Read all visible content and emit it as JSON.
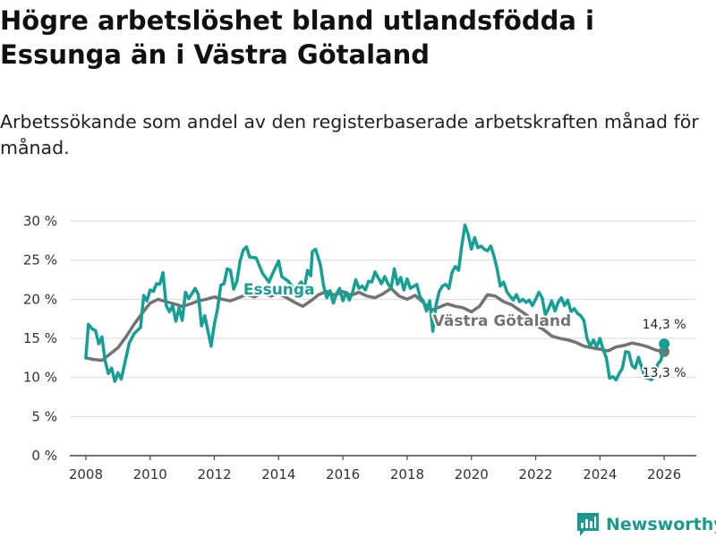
{
  "header": {
    "title": "Högre arbetslöshet bland utlandsfödda i Essunga än i Västra Götaland",
    "subtitle": "Arbetssökande som andel av den registerbaserade arbetskraften månad för månad."
  },
  "brand": {
    "name": "Newsworthy"
  },
  "colors": {
    "essunga": "#15a096",
    "vg": "#737373",
    "grid": "#d9d9d9",
    "axis": "#444444"
  },
  "chart_data": {
    "type": "line",
    "title": "Högre arbetslöshet bland utlandsfödda i Essunga än i Västra Götaland",
    "xlabel": "",
    "ylabel": "",
    "xlim": [
      2007.5,
      2027
    ],
    "ylim": [
      0,
      30
    ],
    "x_ticks": [
      2008,
      2010,
      2012,
      2014,
      2016,
      2018,
      2020,
      2022,
      2024,
      2026
    ],
    "x_tick_labels": [
      "2008",
      "2010",
      "2012",
      "2014",
      "2016",
      "2018",
      "2020",
      "2022",
      "2024",
      "2026"
    ],
    "y_ticks": [
      0,
      5,
      10,
      15,
      20,
      25,
      30
    ],
    "y_tick_labels": [
      "0 %",
      "5 %",
      "10 %",
      "15 %",
      "20 %",
      "25 %",
      "30 %"
    ],
    "grid": true,
    "series": [
      {
        "name": "Västra Götaland",
        "label": "Västra Götaland",
        "color": "#737373",
        "end_label": "13,3 %",
        "end_value": 13.3,
        "points": [
          [
            2008.0,
            12.5
          ],
          [
            2008.25,
            12.3
          ],
          [
            2008.5,
            12.2
          ],
          [
            2008.75,
            13.0
          ],
          [
            2009.0,
            13.8
          ],
          [
            2009.25,
            15.2
          ],
          [
            2009.5,
            16.8
          ],
          [
            2009.75,
            18.2
          ],
          [
            2010.0,
            19.5
          ],
          [
            2010.25,
            20.0
          ],
          [
            2010.5,
            19.7
          ],
          [
            2010.75,
            19.4
          ],
          [
            2011.0,
            19.1
          ],
          [
            2011.25,
            19.4
          ],
          [
            2011.5,
            19.8
          ],
          [
            2011.75,
            20.0
          ],
          [
            2012.0,
            20.3
          ],
          [
            2012.25,
            20.0
          ],
          [
            2012.5,
            19.8
          ],
          [
            2012.75,
            20.2
          ],
          [
            2013.0,
            20.6
          ],
          [
            2013.25,
            20.3
          ],
          [
            2013.5,
            20.8
          ],
          [
            2013.75,
            20.4
          ],
          [
            2014.0,
            20.7
          ],
          [
            2014.25,
            20.2
          ],
          [
            2014.5,
            19.6
          ],
          [
            2014.75,
            19.1
          ],
          [
            2015.0,
            19.8
          ],
          [
            2015.25,
            20.6
          ],
          [
            2015.5,
            21.0
          ],
          [
            2015.75,
            20.5
          ],
          [
            2016.0,
            21.0
          ],
          [
            2016.25,
            20.5
          ],
          [
            2016.5,
            20.9
          ],
          [
            2016.75,
            20.4
          ],
          [
            2017.0,
            20.2
          ],
          [
            2017.25,
            20.7
          ],
          [
            2017.5,
            21.4
          ],
          [
            2017.75,
            20.4
          ],
          [
            2018.0,
            20.0
          ],
          [
            2018.25,
            20.5
          ],
          [
            2018.5,
            19.6
          ],
          [
            2018.75,
            18.6
          ],
          [
            2019.0,
            19.0
          ],
          [
            2019.25,
            19.4
          ],
          [
            2019.5,
            19.1
          ],
          [
            2019.75,
            18.9
          ],
          [
            2020.0,
            18.4
          ],
          [
            2020.25,
            19.1
          ],
          [
            2020.5,
            20.6
          ],
          [
            2020.75,
            20.4
          ],
          [
            2021.0,
            19.7
          ],
          [
            2021.25,
            19.3
          ],
          [
            2021.5,
            18.6
          ],
          [
            2021.75,
            17.9
          ],
          [
            2022.0,
            16.7
          ],
          [
            2022.25,
            16.1
          ],
          [
            2022.5,
            15.3
          ],
          [
            2022.75,
            15.0
          ],
          [
            2023.0,
            14.8
          ],
          [
            2023.25,
            14.5
          ],
          [
            2023.5,
            14.0
          ],
          [
            2023.75,
            13.8
          ],
          [
            2024.0,
            13.6
          ],
          [
            2024.25,
            13.4
          ],
          [
            2024.5,
            13.9
          ],
          [
            2024.75,
            14.1
          ],
          [
            2025.0,
            14.4
          ],
          [
            2025.25,
            14.2
          ],
          [
            2025.5,
            13.9
          ],
          [
            2025.75,
            13.5
          ],
          [
            2026.0,
            13.3
          ]
        ]
      },
      {
        "name": "Essunga",
        "label": "Essunga",
        "color": "#15a096",
        "end_label": "14,3 %",
        "end_value": 14.3,
        "points": [
          [
            2008.0,
            12.5
          ],
          [
            2008.08,
            16.8
          ],
          [
            2008.2,
            16.2
          ],
          [
            2008.3,
            16.0
          ],
          [
            2008.4,
            14.3
          ],
          [
            2008.5,
            15.2
          ],
          [
            2008.6,
            12.1
          ],
          [
            2008.7,
            10.5
          ],
          [
            2008.8,
            11.2
          ],
          [
            2008.9,
            9.5
          ],
          [
            2009.0,
            10.6
          ],
          [
            2009.1,
            9.8
          ],
          [
            2009.2,
            11.6
          ],
          [
            2009.35,
            14.4
          ],
          [
            2009.5,
            15.6
          ],
          [
            2009.7,
            16.4
          ],
          [
            2009.8,
            20.5
          ],
          [
            2009.9,
            19.8
          ],
          [
            2010.0,
            21.2
          ],
          [
            2010.1,
            21.0
          ],
          [
            2010.2,
            22.0
          ],
          [
            2010.3,
            21.9
          ],
          [
            2010.4,
            23.4
          ],
          [
            2010.5,
            19.2
          ],
          [
            2010.6,
            18.4
          ],
          [
            2010.7,
            19.2
          ],
          [
            2010.8,
            17.2
          ],
          [
            2010.9,
            18.9
          ],
          [
            2011.0,
            17.3
          ],
          [
            2011.1,
            20.9
          ],
          [
            2011.2,
            20.1
          ],
          [
            2011.3,
            20.7
          ],
          [
            2011.4,
            21.4
          ],
          [
            2011.5,
            20.6
          ],
          [
            2011.6,
            16.6
          ],
          [
            2011.7,
            17.9
          ],
          [
            2011.8,
            15.9
          ],
          [
            2011.9,
            14.0
          ],
          [
            2012.0,
            16.8
          ],
          [
            2012.1,
            18.8
          ],
          [
            2012.2,
            21.8
          ],
          [
            2012.3,
            22.0
          ],
          [
            2012.4,
            23.9
          ],
          [
            2012.5,
            23.7
          ],
          [
            2012.6,
            21.3
          ],
          [
            2012.7,
            22.3
          ],
          [
            2012.8,
            24.9
          ],
          [
            2012.9,
            26.3
          ],
          [
            2013.0,
            26.7
          ],
          [
            2013.1,
            25.4
          ],
          [
            2013.3,
            25.3
          ],
          [
            2013.5,
            23.3
          ],
          [
            2013.7,
            22.2
          ],
          [
            2013.8,
            23.2
          ],
          [
            2014.0,
            24.9
          ],
          [
            2014.1,
            22.9
          ],
          [
            2014.3,
            22.3
          ],
          [
            2014.5,
            21.2
          ],
          [
            2014.7,
            22.2
          ],
          [
            2014.8,
            21.4
          ],
          [
            2014.9,
            23.7
          ],
          [
            2015.0,
            23.0
          ],
          [
            2015.05,
            26.1
          ],
          [
            2015.15,
            26.4
          ],
          [
            2015.3,
            24.4
          ],
          [
            2015.4,
            21.7
          ],
          [
            2015.5,
            20.2
          ],
          [
            2015.6,
            21.1
          ],
          [
            2015.7,
            19.5
          ],
          [
            2015.8,
            20.7
          ],
          [
            2015.9,
            21.4
          ],
          [
            2016.0,
            19.8
          ],
          [
            2016.1,
            20.9
          ],
          [
            2016.2,
            19.9
          ],
          [
            2016.3,
            20.9
          ],
          [
            2016.4,
            22.5
          ],
          [
            2016.5,
            21.4
          ],
          [
            2016.6,
            21.7
          ],
          [
            2016.7,
            21.2
          ],
          [
            2016.8,
            22.3
          ],
          [
            2016.9,
            22.2
          ],
          [
            2017.0,
            23.5
          ],
          [
            2017.2,
            22.0
          ],
          [
            2017.3,
            22.9
          ],
          [
            2017.4,
            22.0
          ],
          [
            2017.5,
            21.4
          ],
          [
            2017.6,
            23.9
          ],
          [
            2017.7,
            21.9
          ],
          [
            2017.8,
            22.8
          ],
          [
            2017.9,
            21.2
          ],
          [
            2018.0,
            22.6
          ],
          [
            2018.1,
            21.4
          ],
          [
            2018.3,
            21.9
          ],
          [
            2018.4,
            20.3
          ],
          [
            2018.5,
            19.8
          ],
          [
            2018.6,
            18.5
          ],
          [
            2018.7,
            19.8
          ],
          [
            2018.8,
            15.9
          ],
          [
            2018.9,
            19.3
          ],
          [
            2019.0,
            21.0
          ],
          [
            2019.1,
            21.7
          ],
          [
            2019.2,
            21.9
          ],
          [
            2019.3,
            21.4
          ],
          [
            2019.4,
            23.5
          ],
          [
            2019.5,
            24.2
          ],
          [
            2019.6,
            23.7
          ],
          [
            2019.7,
            26.8
          ],
          [
            2019.8,
            29.5
          ],
          [
            2019.9,
            28.3
          ],
          [
            2020.0,
            26.4
          ],
          [
            2020.1,
            27.9
          ],
          [
            2020.2,
            26.6
          ],
          [
            2020.3,
            26.8
          ],
          [
            2020.4,
            26.4
          ],
          [
            2020.5,
            26.2
          ],
          [
            2020.6,
            26.8
          ],
          [
            2020.7,
            25.6
          ],
          [
            2020.8,
            23.9
          ],
          [
            2020.9,
            21.7
          ],
          [
            2021.0,
            22.2
          ],
          [
            2021.1,
            21.0
          ],
          [
            2021.2,
            20.4
          ],
          [
            2021.3,
            19.9
          ],
          [
            2021.4,
            20.6
          ],
          [
            2021.5,
            19.7
          ],
          [
            2021.6,
            20.0
          ],
          [
            2021.7,
            19.6
          ],
          [
            2021.8,
            19.9
          ],
          [
            2021.9,
            19.2
          ],
          [
            2022.0,
            20.0
          ],
          [
            2022.1,
            20.9
          ],
          [
            2022.2,
            20.2
          ],
          [
            2022.3,
            18.0
          ],
          [
            2022.4,
            18.8
          ],
          [
            2022.5,
            19.8
          ],
          [
            2022.6,
            18.5
          ],
          [
            2022.7,
            19.6
          ],
          [
            2022.8,
            20.2
          ],
          [
            2022.9,
            19.2
          ],
          [
            2023.0,
            19.9
          ],
          [
            2023.1,
            18.4
          ],
          [
            2023.2,
            18.8
          ],
          [
            2023.3,
            18.2
          ],
          [
            2023.4,
            17.9
          ],
          [
            2023.5,
            17.3
          ],
          [
            2023.6,
            15.0
          ],
          [
            2023.7,
            14.0
          ],
          [
            2023.8,
            14.8
          ],
          [
            2023.9,
            13.9
          ],
          [
            2024.0,
            15.0
          ],
          [
            2024.1,
            13.6
          ],
          [
            2024.2,
            12.5
          ],
          [
            2024.3,
            9.9
          ],
          [
            2024.4,
            10.1
          ],
          [
            2024.5,
            9.7
          ],
          [
            2024.6,
            10.5
          ],
          [
            2024.7,
            11.2
          ],
          [
            2024.8,
            13.3
          ],
          [
            2024.9,
            13.2
          ],
          [
            2025.0,
            11.5
          ],
          [
            2025.1,
            11.2
          ],
          [
            2025.2,
            12.6
          ],
          [
            2025.3,
            11.3
          ],
          [
            2025.4,
            10.0
          ],
          [
            2025.5,
            9.9
          ],
          [
            2025.6,
            9.7
          ],
          [
            2025.7,
            10.1
          ],
          [
            2025.8,
            11.7
          ],
          [
            2025.9,
            12.2
          ],
          [
            2026.0,
            14.3
          ]
        ]
      }
    ]
  }
}
